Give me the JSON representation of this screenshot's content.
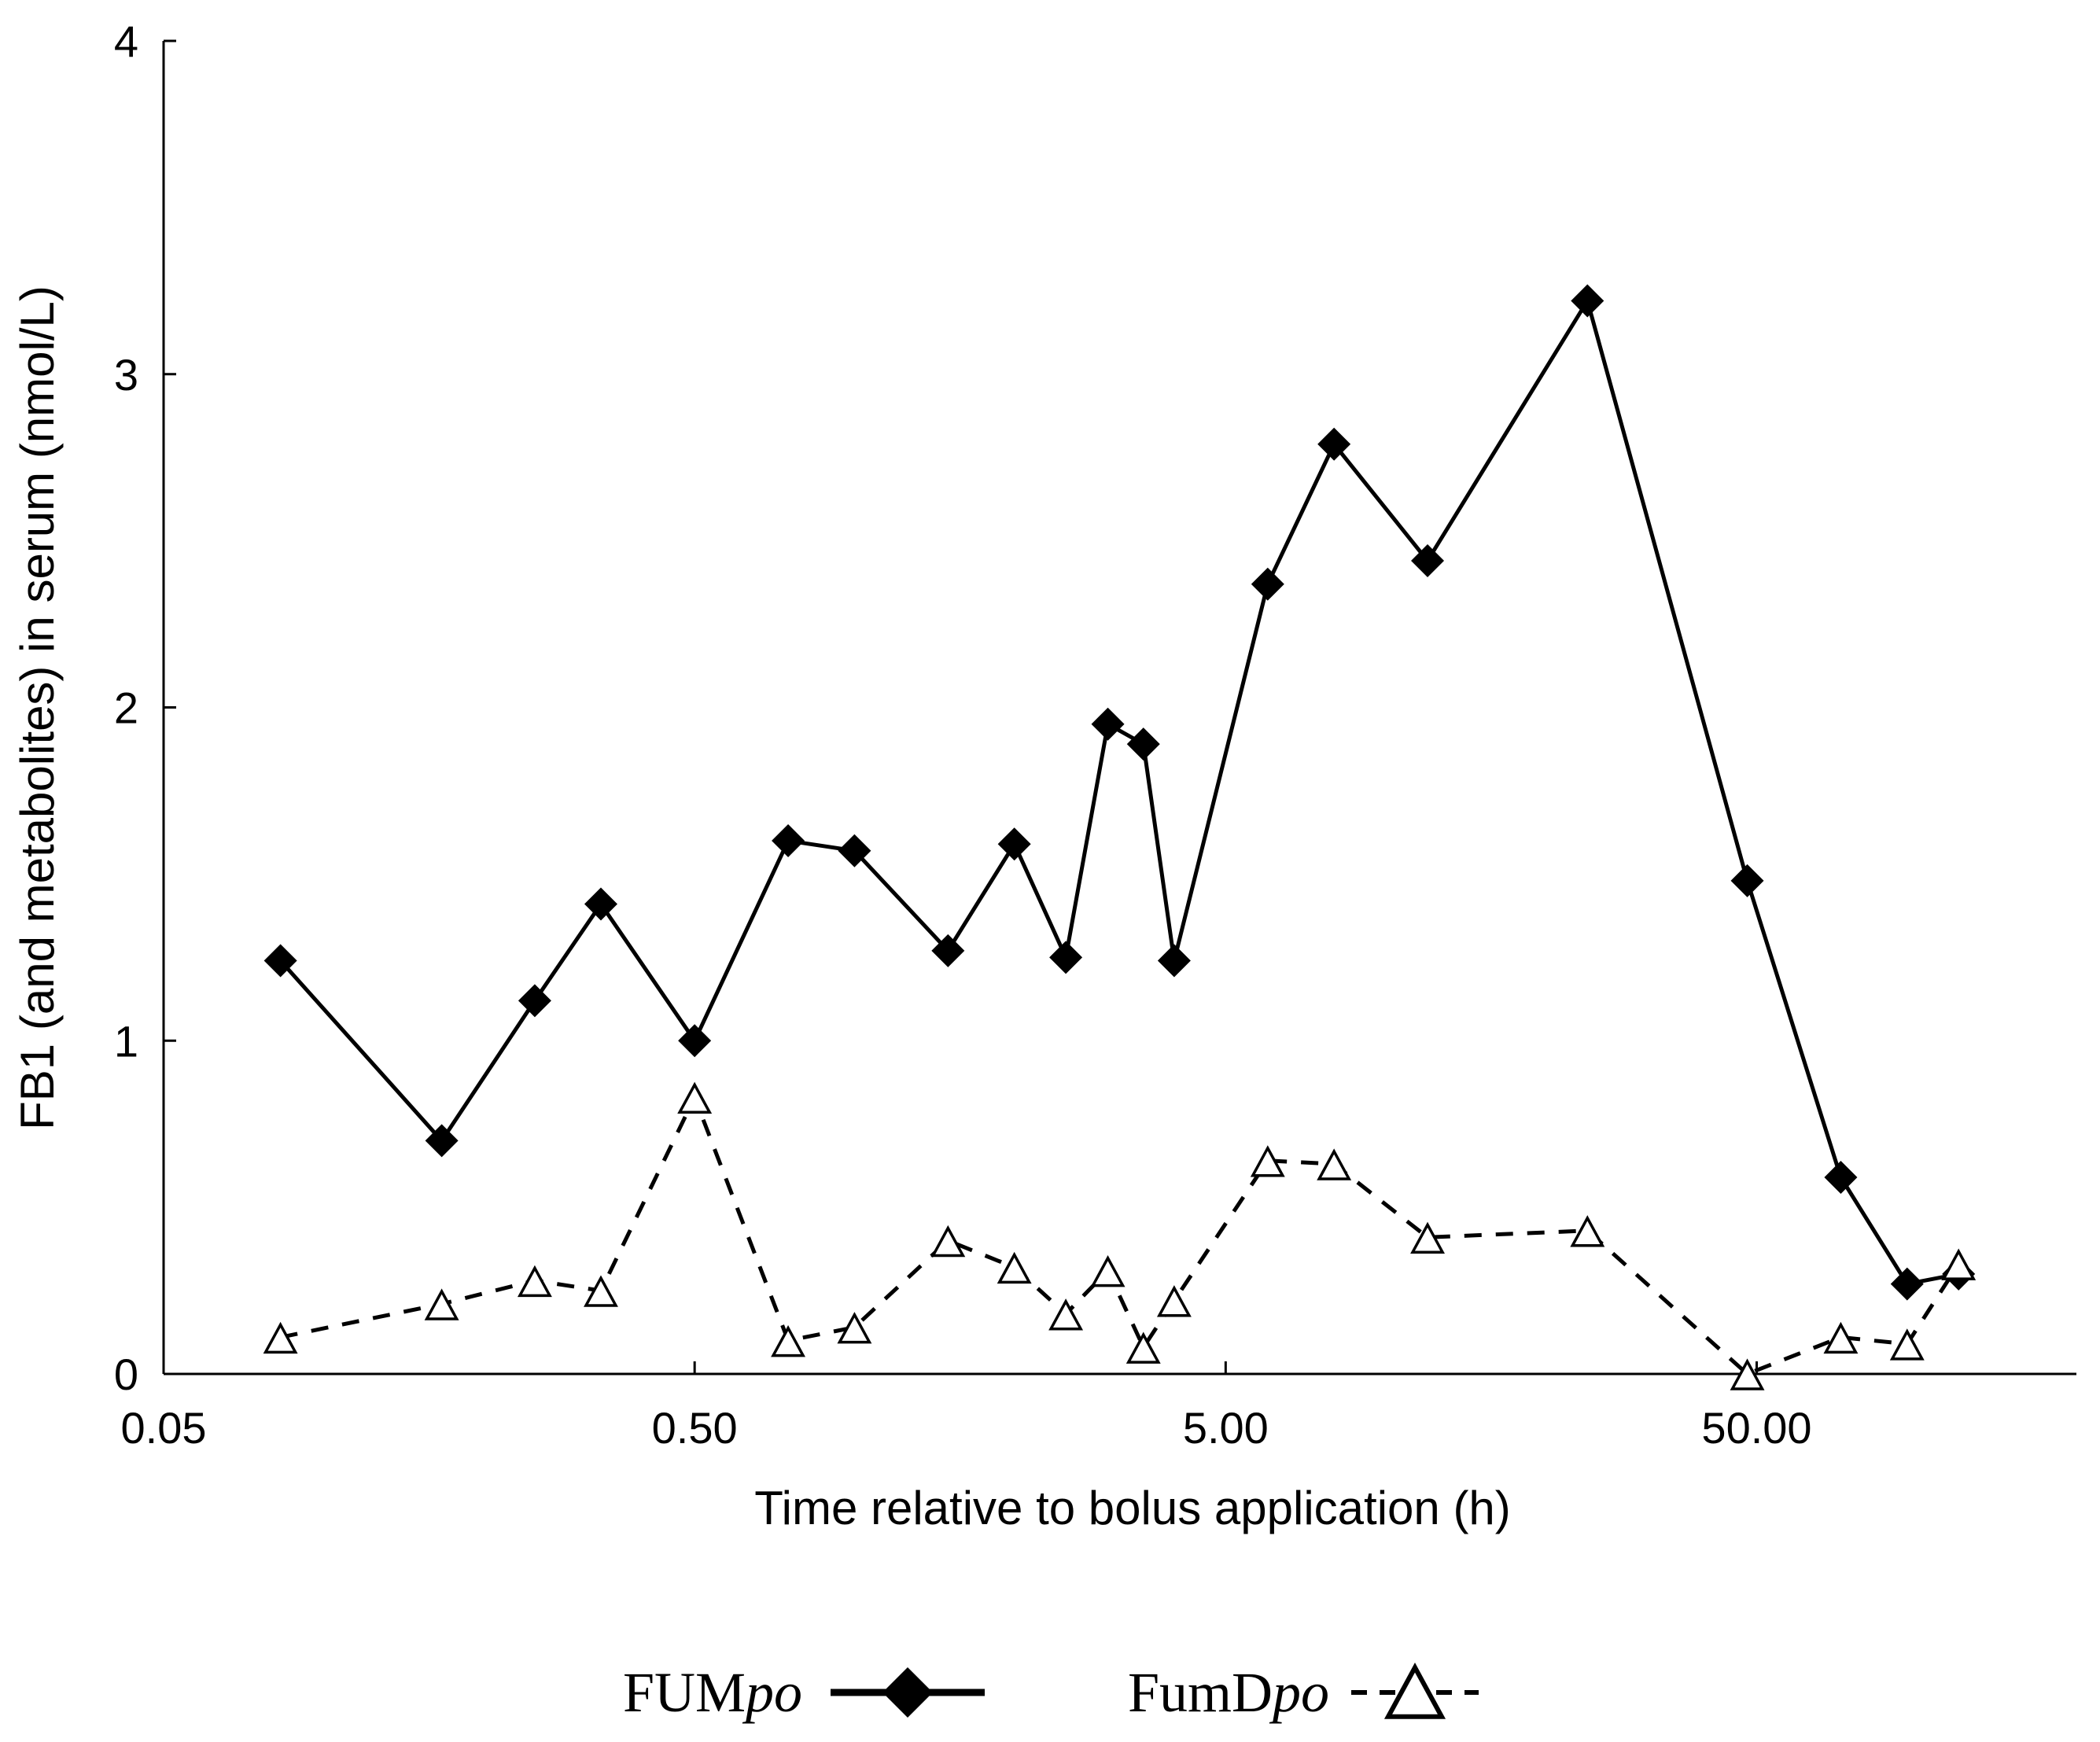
{
  "chart_data": {
    "type": "line",
    "xlabel": "Time relative to bolus application (h)",
    "ylabel": "FB1 (and metabolites) in serum (nmol/L)",
    "x_scale": "log",
    "xlim": [
      0.05,
      200
    ],
    "ylim": [
      0,
      4
    ],
    "x_ticks": [
      {
        "value": 0.05,
        "label": "0.05"
      },
      {
        "value": 0.5,
        "label": "0.50"
      },
      {
        "value": 5,
        "label": "5.00"
      },
      {
        "value": 50,
        "label": "50.00"
      }
    ],
    "y_ticks": [
      {
        "value": 0,
        "label": "0"
      },
      {
        "value": 1,
        "label": "1"
      },
      {
        "value": 2,
        "label": "2"
      },
      {
        "value": 3,
        "label": "3"
      },
      {
        "value": 4,
        "label": "4"
      }
    ],
    "grid": false,
    "legend_position": "bottom",
    "series": [
      {
        "name": "FUM",
        "name_suffix": "po",
        "marker": "diamond",
        "line": "solid",
        "color": "#000000",
        "points": [
          {
            "x": 0.083,
            "y": 1.24
          },
          {
            "x": 0.167,
            "y": 0.7
          },
          {
            "x": 0.25,
            "y": 1.12
          },
          {
            "x": 0.333,
            "y": 1.41
          },
          {
            "x": 0.5,
            "y": 1.0
          },
          {
            "x": 0.75,
            "y": 1.6
          },
          {
            "x": 1.0,
            "y": 1.57
          },
          {
            "x": 1.5,
            "y": 1.27
          },
          {
            "x": 2.0,
            "y": 1.59
          },
          {
            "x": 2.5,
            "y": 1.25
          },
          {
            "x": 3.0,
            "y": 1.95
          },
          {
            "x": 3.5,
            "y": 1.89
          },
          {
            "x": 4.0,
            "y": 1.24
          },
          {
            "x": 6.0,
            "y": 2.37
          },
          {
            "x": 8.0,
            "y": 2.79
          },
          {
            "x": 12.0,
            "y": 2.44
          },
          {
            "x": 24.0,
            "y": 3.22
          },
          {
            "x": 48.0,
            "y": 1.48
          },
          {
            "x": 72.0,
            "y": 0.59
          },
          {
            "x": 96.0,
            "y": 0.27
          },
          {
            "x": 120.0,
            "y": 0.3
          }
        ]
      },
      {
        "name": "FumD",
        "name_suffix": "po",
        "marker": "triangle-open",
        "line": "dashed",
        "color": "#000000",
        "points": [
          {
            "x": 0.083,
            "y": 0.11
          },
          {
            "x": 0.167,
            "y": 0.21
          },
          {
            "x": 0.25,
            "y": 0.28
          },
          {
            "x": 0.333,
            "y": 0.25
          },
          {
            "x": 0.5,
            "y": 0.83
          },
          {
            "x": 0.75,
            "y": 0.1
          },
          {
            "x": 1.0,
            "y": 0.14
          },
          {
            "x": 1.5,
            "y": 0.4
          },
          {
            "x": 2.0,
            "y": 0.32
          },
          {
            "x": 2.5,
            "y": 0.18
          },
          {
            "x": 3.0,
            "y": 0.31
          },
          {
            "x": 3.5,
            "y": 0.08
          },
          {
            "x": 4.0,
            "y": 0.22
          },
          {
            "x": 6.0,
            "y": 0.64
          },
          {
            "x": 8.0,
            "y": 0.63
          },
          {
            "x": 12.0,
            "y": 0.41
          },
          {
            "x": 24.0,
            "y": 0.43
          },
          {
            "x": 48.0,
            "y": 0.0
          },
          {
            "x": 72.0,
            "y": 0.11
          },
          {
            "x": 96.0,
            "y": 0.09
          },
          {
            "x": 120.0,
            "y": 0.33
          }
        ]
      }
    ]
  }
}
